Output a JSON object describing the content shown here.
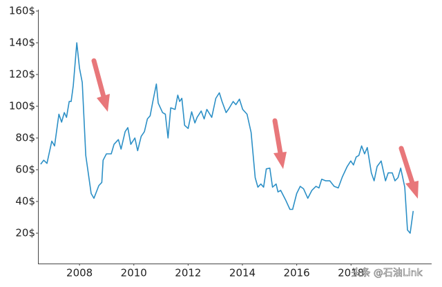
{
  "chart_data": {
    "type": "line",
    "x": [
      2006.57,
      2006.68,
      2006.8,
      2006.98,
      2007.08,
      2007.24,
      2007.34,
      2007.44,
      2007.52,
      2007.62,
      2007.69,
      2007.77,
      2007.9,
      2008.0,
      2008.1,
      2008.23,
      2008.43,
      2008.53,
      2008.71,
      2008.82,
      2008.87,
      2008.99,
      2009.17,
      2009.27,
      2009.43,
      2009.53,
      2009.68,
      2009.78,
      2009.89,
      2010.04,
      2010.14,
      2010.27,
      2010.39,
      2010.5,
      2010.6,
      2010.7,
      2010.83,
      2010.9,
      2011.06,
      2011.16,
      2011.26,
      2011.36,
      2011.52,
      2011.62,
      2011.69,
      2011.77,
      2011.87,
      2012.0,
      2012.13,
      2012.25,
      2012.33,
      2012.48,
      2012.59,
      2012.69,
      2012.87,
      2013.02,
      2013.15,
      2013.25,
      2013.4,
      2013.5,
      2013.66,
      2013.76,
      2013.89,
      2014.01,
      2014.17,
      2014.32,
      2014.47,
      2014.57,
      2014.68,
      2014.78,
      2014.88,
      2015.01,
      2015.11,
      2015.24,
      2015.31,
      2015.41,
      2015.59,
      2015.75,
      2015.85,
      2016.0,
      2016.13,
      2016.25,
      2016.41,
      2016.56,
      2016.71,
      2016.82,
      2016.92,
      2017.07,
      2017.22,
      2017.38,
      2017.53,
      2017.68,
      2017.86,
      2017.99,
      2018.09,
      2018.19,
      2018.29,
      2018.39,
      2018.5,
      2018.6,
      2018.75,
      2018.85,
      2018.96,
      2019.11,
      2019.27,
      2019.37,
      2019.52,
      2019.62,
      2019.73,
      2019.83,
      2019.98,
      2020.08,
      2020.18,
      2020.29
    ],
    "series": [
      {
        "color": "#2b8fc6",
        "values": [
          63.5,
          66,
          64,
          78,
          75,
          95,
          90,
          96,
          93,
          103,
          103,
          113,
          140,
          124,
          115,
          69,
          45,
          42,
          50,
          52,
          66,
          70,
          70,
          76,
          79,
          73,
          84,
          86.5,
          76,
          80,
          72,
          81,
          84,
          92,
          94,
          103,
          114,
          102,
          96,
          95,
          80,
          99,
          98,
          107,
          103,
          105,
          88,
          86,
          96.5,
          89.5,
          93,
          97,
          92,
          98,
          93,
          105,
          108.5,
          103,
          96,
          98.5,
          103,
          101,
          104.5,
          98,
          95,
          83.5,
          55,
          49,
          51,
          49,
          60.5,
          61,
          49,
          51,
          46,
          47,
          41,
          35,
          35,
          45,
          49.5,
          48,
          42,
          47,
          49.5,
          48.5,
          54,
          53,
          53,
          49.5,
          48.5,
          55.5,
          62,
          65.5,
          63,
          68,
          69,
          75,
          70,
          74,
          58,
          53,
          62,
          65.5,
          53,
          58,
          58,
          53,
          55,
          61,
          49,
          22,
          20,
          34
        ]
      }
    ],
    "xlim": [
      2006.47,
      2020.97
    ],
    "xticks": [
      2008,
      2010,
      2012,
      2014,
      2016,
      2018
    ],
    "ylim": [
      0,
      160
    ],
    "yticks": [
      {
        "value": 20,
        "label": "20$"
      },
      {
        "value": 40,
        "label": "40$"
      },
      {
        "value": 60,
        "label": "60$"
      },
      {
        "value": 80,
        "label": "80$"
      },
      {
        "value": 100,
        "label": "100$"
      },
      {
        "value": 120,
        "label": "120$"
      },
      {
        "value": 140,
        "label": "140$"
      },
      {
        "value": 160,
        "label": "160$"
      }
    ],
    "watermark": "头条 @石油Link"
  }
}
